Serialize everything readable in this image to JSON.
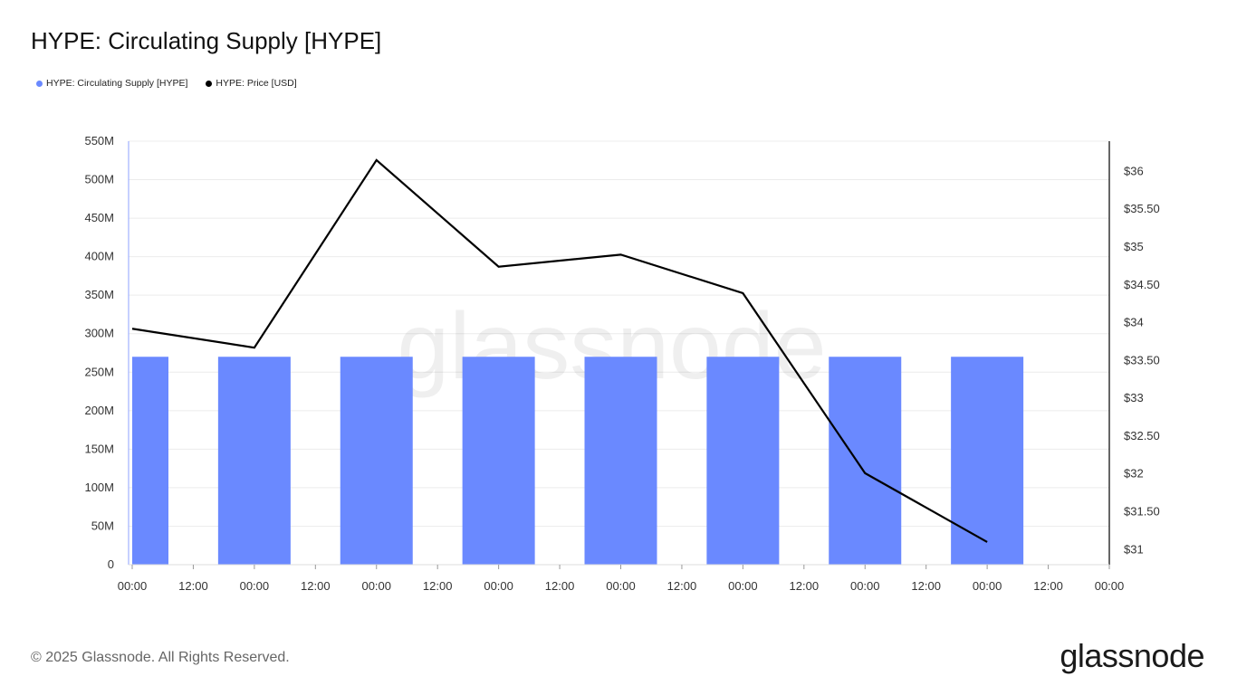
{
  "title": "HYPE: Circulating Supply [HYPE]",
  "legend": [
    {
      "label": "HYPE: Circulating Supply [HYPE]",
      "color": "#6a89ff"
    },
    {
      "label": "HYPE: Price [USD]",
      "color": "#000000"
    }
  ],
  "watermark": "glassnode",
  "footer": "© 2025 Glassnode. All Rights Reserved.",
  "logo": "glassnode",
  "chart_data": {
    "type": "bar",
    "title": "HYPE: Circulating Supply [HYPE]",
    "x_ticks": [
      "00:00",
      "12:00",
      "00:00",
      "12:00",
      "00:00",
      "12:00",
      "00:00",
      "12:00",
      "00:00",
      "12:00",
      "00:00",
      "12:00",
      "00:00",
      "12:00",
      "00:00",
      "12:00",
      "00:00"
    ],
    "left_axis": {
      "ticks": [
        "0",
        "50M",
        "100M",
        "150M",
        "200M",
        "250M",
        "300M",
        "350M",
        "400M",
        "450M",
        "500M",
        "550M"
      ],
      "ylim": [
        0,
        550000000
      ]
    },
    "right_axis": {
      "ticks": [
        "$31",
        "$31.50",
        "$32",
        "$32.50",
        "$33",
        "$33.50",
        "$34",
        "$34.50",
        "$35",
        "$35.50",
        "$36"
      ],
      "ylim": [
        30.8,
        36.4
      ]
    },
    "grid": true,
    "legend_position": "top-left",
    "series": [
      {
        "name": "HYPE: Circulating Supply [HYPE]",
        "type": "bar",
        "axis": "left",
        "color": "#6a89ff",
        "x": [
          0,
          24,
          48,
          72,
          96,
          120,
          144,
          168
        ],
        "values": [
          270000000,
          270000000,
          270000000,
          270000000,
          270000000,
          270000000,
          270000000,
          270000000
        ]
      },
      {
        "name": "HYPE: Price [USD]",
        "type": "line",
        "axis": "right",
        "color": "#000000",
        "x": [
          0,
          24,
          48,
          72,
          96,
          120,
          144,
          168
        ],
        "values": [
          33.92,
          33.67,
          36.15,
          34.74,
          34.9,
          34.39,
          32.01,
          31.1
        ]
      }
    ],
    "x_range_hours": [
      0,
      192
    ]
  }
}
